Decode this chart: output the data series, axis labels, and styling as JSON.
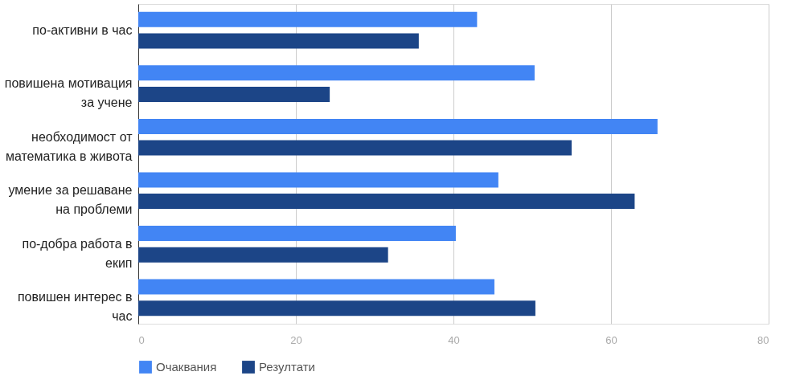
{
  "chart_data": {
    "type": "bar",
    "orientation": "horizontal",
    "categories": [
      "по-активни в час",
      "повишена мотивация за учене",
      "необходимост от математика в живота",
      "умение за решаване на проблеми",
      "по-добра работа в екип",
      "повишен интерес в час"
    ],
    "series": [
      {
        "name": "Очаквания",
        "color": "#4285f4",
        "values": [
          43,
          50.3,
          65.9,
          45.7,
          40.3,
          45.2
        ]
      },
      {
        "name": "Резултати",
        "color": "#1c4587",
        "values": [
          35.6,
          24.3,
          55.0,
          63.0,
          31.7,
          50.4
        ]
      }
    ],
    "xlim": [
      0,
      80
    ],
    "xticks": [
      0,
      20,
      40,
      60,
      80
    ],
    "grid": "x",
    "legend": "bottom"
  }
}
